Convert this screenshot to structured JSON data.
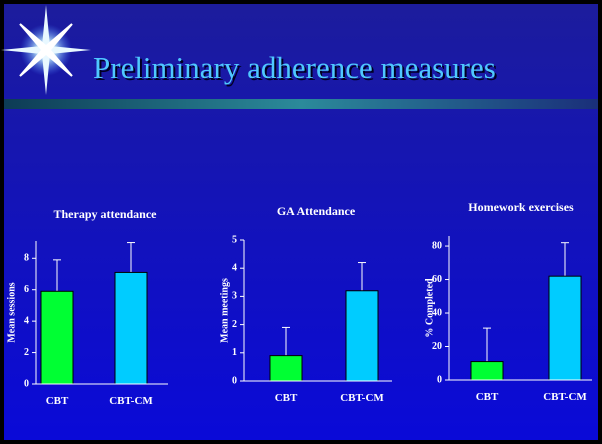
{
  "title": "Preliminary adherence measures",
  "chart_data": [
    {
      "type": "bar",
      "title": "Therapy attendance",
      "y_label": "Mean sessions",
      "categories": [
        "CBT",
        "CBT-CM"
      ],
      "values": [
        5.9,
        7.1
      ],
      "errors": [
        2.0,
        1.9
      ],
      "colors": [
        "#00ff33",
        "#00ccff"
      ],
      "ylim": [
        0,
        9.1
      ],
      "yticks": [
        0,
        2,
        4,
        6,
        8
      ]
    },
    {
      "type": "bar",
      "title": "GA Attendance",
      "y_label": "Mean meetings",
      "categories": [
        "CBT",
        "CBT-CM"
      ],
      "values": [
        0.9,
        3.2
      ],
      "errors": [
        1.0,
        1.0
      ],
      "colors": [
        "#00ff33",
        "#00ccff"
      ],
      "ylim": [
        0,
        5
      ],
      "yticks": [
        0,
        1,
        2,
        3,
        4,
        5
      ]
    },
    {
      "type": "bar",
      "title": "Homework exercises",
      "y_label": "% Completed",
      "categories": [
        "CBT",
        "CBT-CM"
      ],
      "values": [
        11,
        62
      ],
      "errors": [
        20,
        20
      ],
      "colors": [
        "#00ff33",
        "#00ccff"
      ],
      "ylim": [
        0,
        86
      ],
      "yticks": [
        0,
        20,
        40,
        60,
        80
      ]
    }
  ]
}
